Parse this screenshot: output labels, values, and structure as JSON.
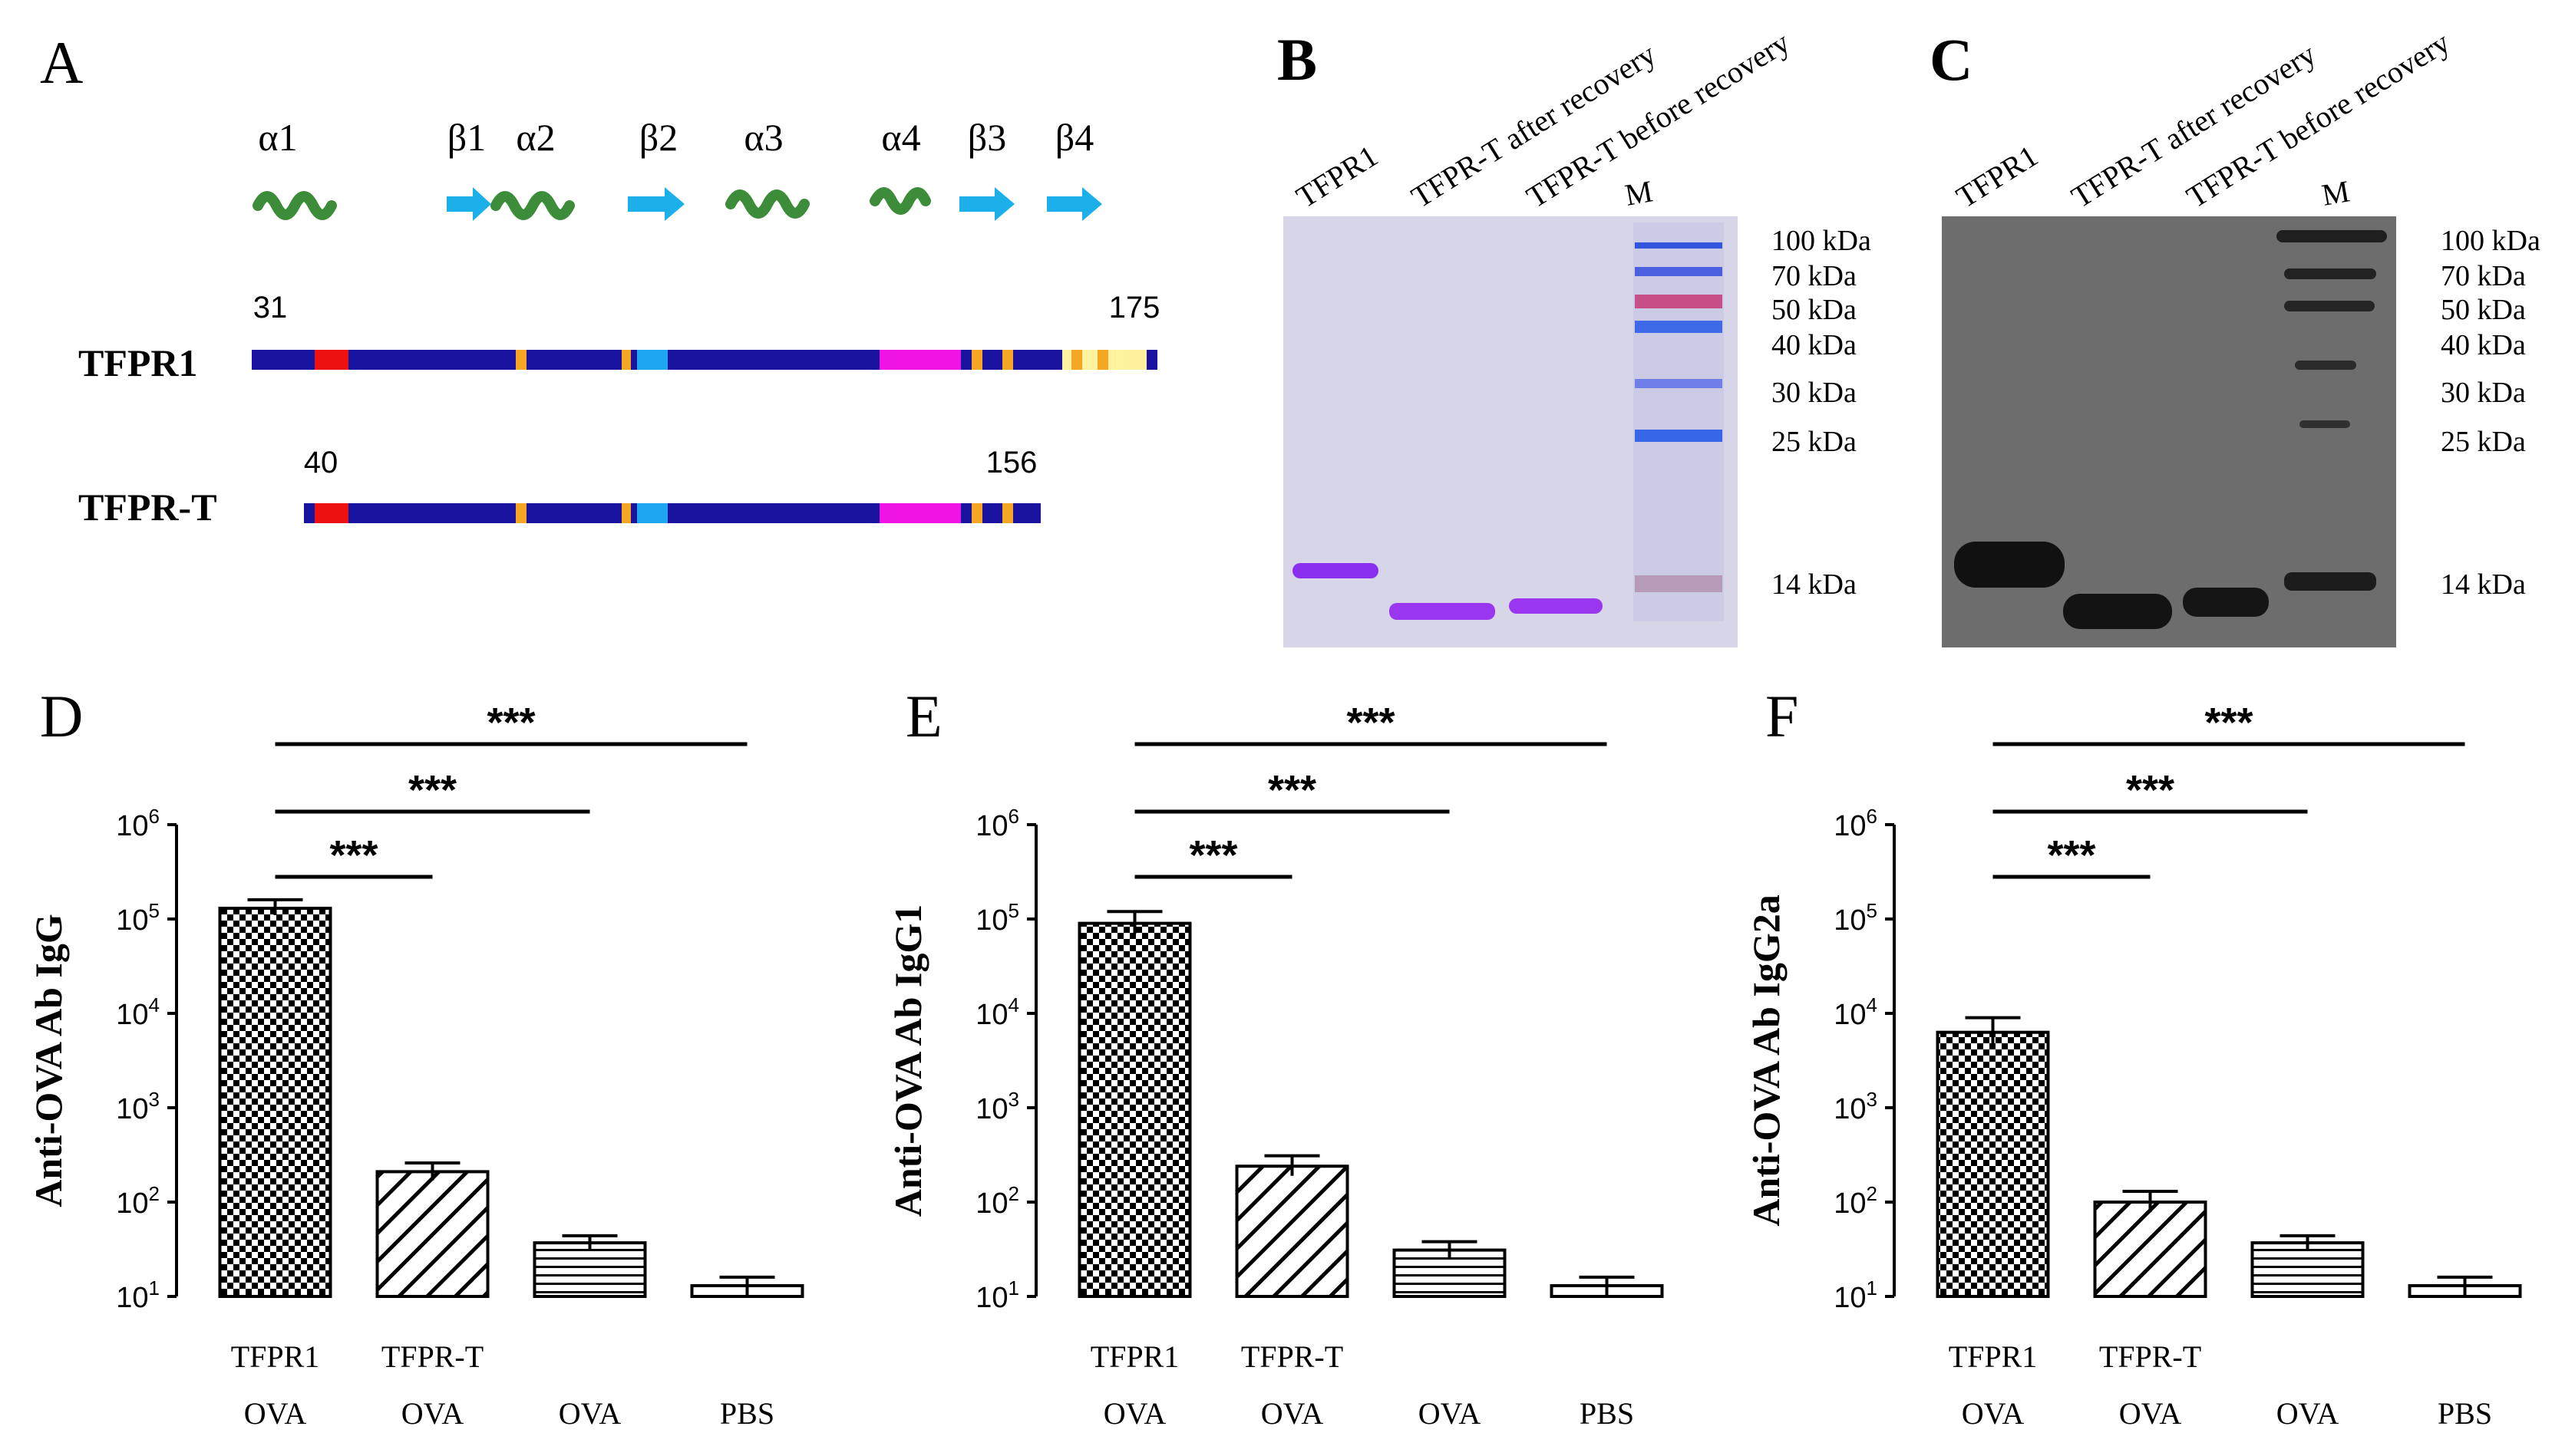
{
  "panel_a": {
    "label": "A",
    "structure_labels": [
      "α1",
      "β1",
      "α2",
      "β2",
      "α3",
      "α4",
      "β3",
      "β4"
    ],
    "rows": [
      {
        "name": "TFPR1",
        "start": "31",
        "end": "175"
      },
      {
        "name": "TFPR-T",
        "start": "40",
        "end": "156"
      }
    ],
    "colors": {
      "backbone": "#1a13a0",
      "red": "#ee1111",
      "orange": "#f5a623",
      "cyan": "#1ea7f0",
      "magenta": "#f013e6",
      "yellow": "#fff3a0",
      "helix": "#3c8c3a",
      "arrow": "#1bb0ea"
    }
  },
  "panel_b": {
    "label": "B",
    "lanes": [
      "TFPR1",
      "TFPR-T after recovery",
      "TFPR-T before recovery",
      "M"
    ],
    "markers": [
      "100 kDa",
      "70 kDa",
      "50 kDa",
      "40 kDa",
      "30 kDa",
      "25 kDa",
      "14 kDa"
    ]
  },
  "panel_c": {
    "label": "C",
    "lanes": [
      "TFPR1",
      "TFPR-T after recovery",
      "TFPR-T before recovery",
      "M"
    ],
    "markers": [
      "100 kDa",
      "70 kDa",
      "50 kDa",
      "40 kDa",
      "30 kDa",
      "25 kDa",
      "14 kDa"
    ]
  },
  "chart_data": [
    {
      "panel": "D",
      "type": "bar",
      "categories": [
        "TFPR1 OVA",
        "TFPR-T OVA",
        "OVA",
        "PBS"
      ],
      "category_lines": [
        [
          "TFPR1",
          "OVA"
        ],
        [
          "TFPR-T",
          "OVA"
        ],
        [
          "",
          "OVA"
        ],
        [
          "",
          "PBS"
        ]
      ],
      "values": [
        130000,
        210,
        37,
        13
      ],
      "error_hi": [
        160000,
        260,
        44,
        16
      ],
      "error_lo": [
        110000,
        170,
        31,
        10
      ],
      "patterns": [
        "checker",
        "diagonal",
        "horizontal",
        "blank"
      ],
      "ylabel": "Anti-OVA Ab IgG",
      "yscale": "log",
      "ylim": [
        10,
        1000000
      ],
      "yticks": [
        {
          "base": "10",
          "exp": "1"
        },
        {
          "base": "10",
          "exp": "2"
        },
        {
          "base": "10",
          "exp": "3"
        },
        {
          "base": "10",
          "exp": "4"
        },
        {
          "base": "10",
          "exp": "5"
        },
        {
          "base": "10",
          "exp": "6"
        }
      ],
      "significance": [
        {
          "from": 0,
          "to": 1,
          "label": "***"
        },
        {
          "from": 0,
          "to": 2,
          "label": "***"
        },
        {
          "from": 0,
          "to": 3,
          "label": "***"
        }
      ]
    },
    {
      "panel": "E",
      "type": "bar",
      "categories": [
        "TFPR1 OVA",
        "TFPR-T OVA",
        "OVA",
        "PBS"
      ],
      "category_lines": [
        [
          "TFPR1",
          "OVA"
        ],
        [
          "TFPR-T",
          "OVA"
        ],
        [
          "",
          "OVA"
        ],
        [
          "",
          "PBS"
        ]
      ],
      "values": [
        90000,
        240,
        31,
        13
      ],
      "error_hi": [
        120000,
        310,
        38,
        16
      ],
      "error_lo": [
        70000,
        190,
        25,
        10
      ],
      "patterns": [
        "checker",
        "diagonal",
        "horizontal",
        "blank"
      ],
      "ylabel": "Anti-OVA Ab IgG1",
      "yscale": "log",
      "ylim": [
        10,
        1000000
      ],
      "yticks": [
        {
          "base": "10",
          "exp": "1"
        },
        {
          "base": "10",
          "exp": "2"
        },
        {
          "base": "10",
          "exp": "3"
        },
        {
          "base": "10",
          "exp": "4"
        },
        {
          "base": "10",
          "exp": "5"
        },
        {
          "base": "10",
          "exp": "6"
        }
      ],
      "significance": [
        {
          "from": 0,
          "to": 1,
          "label": "***"
        },
        {
          "from": 0,
          "to": 2,
          "label": "***"
        },
        {
          "from": 0,
          "to": 3,
          "label": "***"
        }
      ]
    },
    {
      "panel": "F",
      "type": "bar",
      "categories": [
        "TFPR1 OVA",
        "TFPR-T OVA",
        "OVA",
        "PBS"
      ],
      "category_lines": [
        [
          "TFPR1",
          "OVA"
        ],
        [
          "TFPR-T",
          "OVA"
        ],
        [
          "",
          "OVA"
        ],
        [
          "",
          "PBS"
        ]
      ],
      "values": [
        6300,
        100,
        37,
        13
      ],
      "error_hi": [
        9000,
        130,
        44,
        16
      ],
      "error_lo": [
        4800,
        78,
        31,
        10
      ],
      "patterns": [
        "checker",
        "diagonal",
        "horizontal",
        "blank"
      ],
      "ylabel": "Anti-OVA Ab IgG2a",
      "yscale": "log",
      "ylim": [
        10,
        1000000
      ],
      "yticks": [
        {
          "base": "10",
          "exp": "1"
        },
        {
          "base": "10",
          "exp": "2"
        },
        {
          "base": "10",
          "exp": "3"
        },
        {
          "base": "10",
          "exp": "4"
        },
        {
          "base": "10",
          "exp": "5"
        },
        {
          "base": "10",
          "exp": "6"
        }
      ],
      "significance": [
        {
          "from": 0,
          "to": 1,
          "label": "***"
        },
        {
          "from": 0,
          "to": 2,
          "label": "***"
        },
        {
          "from": 0,
          "to": 3,
          "label": "***"
        }
      ]
    }
  ]
}
